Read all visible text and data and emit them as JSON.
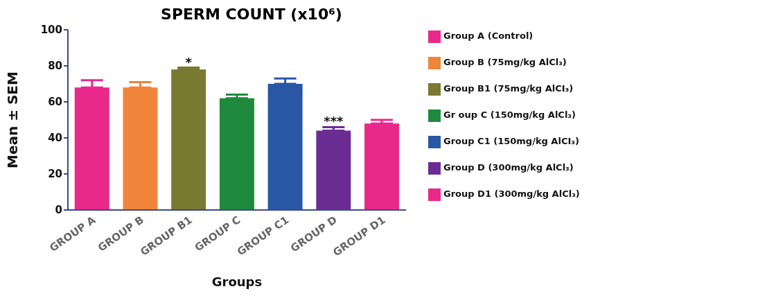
{
  "chart_data": {
    "type": "bar",
    "title": "SPERM COUNT (x10⁶)",
    "xlabel": "Groups",
    "ylabel": "Mean ± SEM",
    "categories": [
      "GROUP A",
      "GROUP B",
      "GROUP B1",
      "GROUP C",
      "GROUP C1",
      "GROUP D",
      "GROUP D1"
    ],
    "stacked": true,
    "series": [
      {
        "name": "Group A (Control)",
        "color": "#e9298a",
        "values": [
          68,
          null,
          null,
          null,
          null,
          null,
          null
        ],
        "errors": [
          [
            68,
            72
          ],
          null,
          null,
          null,
          null,
          null,
          null
        ]
      },
      {
        "name": "Group B (75mg/kg AlCl₃)",
        "color": "#f0843a",
        "values": [
          null,
          68,
          null,
          null,
          null,
          null,
          null
        ],
        "errors": [
          null,
          [
            68,
            71
          ],
          null,
          null,
          null,
          null,
          null
        ]
      },
      {
        "name": "Group B1 (75mg/kg AlCI₃)",
        "color": "#7a7a32",
        "values": [
          null,
          null,
          78,
          null,
          null,
          null,
          null
        ],
        "errors": [
          null,
          null,
          [
            78,
            79
          ],
          null,
          null,
          null,
          null
        ]
      },
      {
        "name": "Gr oup C (150mg/kg AlCl₃)",
        "color": "#1f8a3e",
        "values": [
          null,
          null,
          null,
          62,
          null,
          null,
          null
        ],
        "errors": [
          null,
          null,
          null,
          [
            62,
            64
          ],
          null,
          null,
          null
        ]
      },
      {
        "name": "Group C1 (150mg/kg AlCI₃)",
        "color": "#2a56a6",
        "values": [
          null,
          null,
          null,
          null,
          70,
          null,
          null
        ],
        "errors": [
          null,
          null,
          null,
          null,
          [
            70,
            73
          ],
          null,
          null
        ]
      },
      {
        "name": "Group D (300mg/kg AlCl₃)",
        "color": "#6a2d94",
        "values": [
          null,
          null,
          null,
          null,
          null,
          44,
          null
        ],
        "errors": [
          null,
          null,
          null,
          null,
          null,
          [
            44,
            46
          ],
          null
        ]
      },
      {
        "name": "Group D1 (300mg/kg AlCl₃)",
        "color": "#e9298a",
        "values": [
          null,
          null,
          null,
          null,
          null,
          null,
          48
        ],
        "errors": [
          null,
          null,
          null,
          null,
          null,
          null,
          [
            48,
            50
          ]
        ]
      }
    ],
    "ylim": [
      0,
      100
    ],
    "yticks": [
      0,
      20,
      40,
      60,
      80,
      100
    ],
    "grid": false,
    "legend": "right",
    "annotations": [
      {
        "text": "*",
        "x": "GROUP B1",
        "y": 79
      },
      {
        "text": "***",
        "x": "GROUP D",
        "y": 46
      }
    ]
  }
}
